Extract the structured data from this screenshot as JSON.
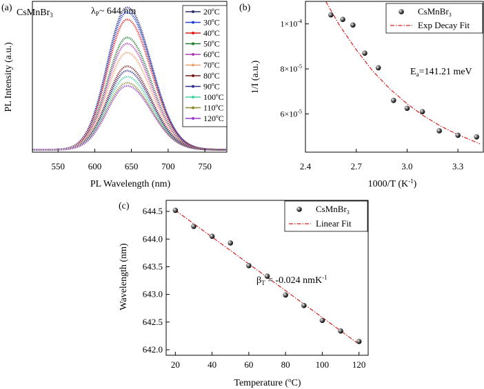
{
  "chart_data": [
    {
      "id": "a",
      "panel_label": "(a)",
      "type": "line",
      "title": "CsMnBr3",
      "annotation": "λP~ 644 nm",
      "xlabel": "PL Wavelength (nm)",
      "ylabel": "PL Intensity (a.u.)",
      "xlim": [
        515,
        780
      ],
      "xticks": [
        550,
        600,
        650,
        700,
        750
      ],
      "ylim": [
        0,
        1
      ],
      "legend_position": "top-right",
      "peak_wavelength_nm": 644,
      "series": [
        {
          "name": "20ºC",
          "color": "#2b2b6b",
          "peak": 0.96
        },
        {
          "name": "30ºC",
          "color": "#1f3fd8",
          "peak": 0.93
        },
        {
          "name": "40ºC",
          "color": "#e01818",
          "peak": 0.88
        },
        {
          "name": "50ºC",
          "color": "#1c7a2c",
          "peak": 0.76
        },
        {
          "name": "60ºC",
          "color": "#b23bb8",
          "peak": 0.72
        },
        {
          "name": "70ºC",
          "color": "#f0a070",
          "peak": 0.66
        },
        {
          "name": "80ºC",
          "color": "#7a1818",
          "peak": 0.57
        },
        {
          "name": "90ºC",
          "color": "#2a2a8a",
          "peak": 0.54
        },
        {
          "name": "100ºC",
          "color": "#40d0a0",
          "peak": 0.5
        },
        {
          "name": "110ºC",
          "color": "#8a8a2a",
          "peak": 0.46
        },
        {
          "name": "120ºC",
          "color": "#9a3ad0",
          "peak": 0.44
        }
      ]
    },
    {
      "id": "b",
      "panel_label": "(b)",
      "type": "scatter",
      "xlabel": "1000/T (K-1)",
      "ylabel": "1/I (a.u.)",
      "xlim": [
        2.4,
        3.45
      ],
      "xticks": [
        "2.4",
        "2.7",
        "3.0",
        "3.3"
      ],
      "xtick_values": [
        2.4,
        2.7,
        3.0,
        3.3
      ],
      "ylim": [
        4.3e-05,
        0.00011
      ],
      "yticks": [
        "6×10-5",
        "8×10-5",
        "1×10-4"
      ],
      "ytick_values": [
        6e-05,
        8e-05,
        0.0001
      ],
      "annotation": "Ea=141.21 meV",
      "legend_position": "top-right",
      "legend": [
        "CsMnBr3",
        "Exp Decay Fit"
      ],
      "points": {
        "x": [
          2.55,
          2.62,
          2.68,
          2.75,
          2.83,
          2.92,
          3.0,
          3.09,
          3.19,
          3.3,
          3.41
        ],
        "y": [
          0.000104,
          0.000102,
          9.95e-05,
          8.7e-05,
          8.05e-05,
          6.6e-05,
          6.25e-05,
          6.1e-05,
          5.25e-05,
          5.05e-05,
          4.98e-05
        ]
      },
      "fit": {
        "type": "exp_decay",
        "color": "#d42020",
        "x": [
          2.52,
          2.6,
          2.7,
          2.8,
          2.9,
          3.0,
          3.1,
          3.2,
          3.3,
          3.43
        ],
        "y": [
          0.00011,
          9.95e-05,
          8.85e-05,
          7.88e-05,
          7.1e-05,
          6.45e-05,
          5.9e-05,
          5.45e-05,
          5.08e-05,
          4.67e-05
        ]
      }
    },
    {
      "id": "c",
      "panel_label": "(c)",
      "type": "scatter",
      "xlabel": "Temperature (ºC)",
      "ylabel": "Wavelength (nm)",
      "xlim": [
        15,
        125
      ],
      "xticks": [
        20,
        40,
        60,
        80,
        100,
        120
      ],
      "ylim": [
        641.9,
        644.7
      ],
      "yticks": [
        "642.0",
        "642.5",
        "643.0",
        "643.5",
        "644.0",
        "644.5"
      ],
      "ytick_values": [
        642.0,
        642.5,
        643.0,
        643.5,
        644.0,
        644.5
      ],
      "annotation": "βT = -0.024 nmK-1",
      "legend_position": "top-right",
      "legend": [
        "CsMnBr3",
        "Linear Fit"
      ],
      "points": {
        "x": [
          20,
          30,
          40,
          50,
          60,
          70,
          80,
          90,
          100,
          110,
          120
        ],
        "y": [
          644.52,
          644.23,
          644.05,
          643.93,
          643.52,
          643.33,
          642.99,
          642.8,
          642.53,
          642.34,
          642.15
        ]
      },
      "fit": {
        "type": "linear",
        "color": "#d42020",
        "x": [
          20,
          120
        ],
        "y": [
          644.52,
          642.1
        ]
      }
    }
  ]
}
